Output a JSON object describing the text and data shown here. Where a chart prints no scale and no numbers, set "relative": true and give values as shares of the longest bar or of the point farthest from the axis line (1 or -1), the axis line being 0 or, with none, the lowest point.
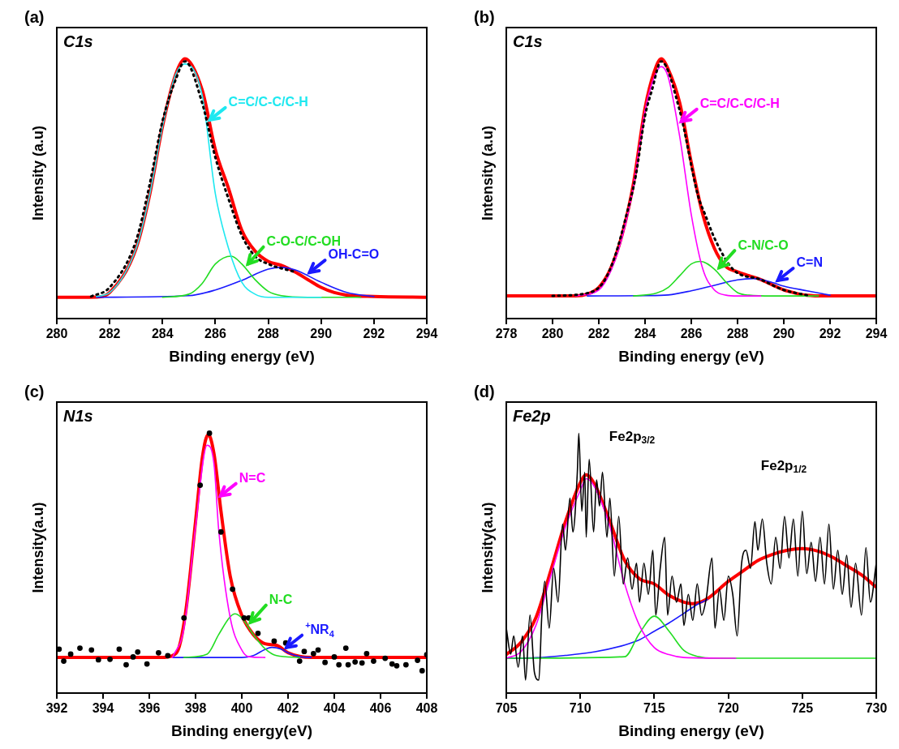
{
  "chart_data": [
    {
      "type": "line",
      "title": "(a)",
      "subtitle": "C1s",
      "xlabel": "Binding energy (eV)",
      "ylabel": "Intensity (a.u)",
      "relative": true,
      "xlim": [
        280,
        294
      ],
      "xticks": [
        280,
        282,
        284,
        286,
        288,
        290,
        292,
        294
      ],
      "marker": "none",
      "series": [
        {
          "type": "line",
          "color": "#000000",
          "line_style": "dotted",
          "x": [
            281.3,
            282,
            283,
            283.5,
            284,
            284.5,
            284.85,
            285.5,
            286,
            286.5,
            287,
            287.5,
            288,
            289
          ],
          "values": [
            0.085,
            0.12,
            0.3,
            0.51,
            0.76,
            0.92,
            0.99,
            0.83,
            0.62,
            0.46,
            0.32,
            0.24,
            0.21,
            0.18
          ]
        },
        {
          "type": "line",
          "name": "C=C/C-C/C-H",
          "color": "#1ee8f0",
          "x": [
            281.5,
            282,
            283,
            283.5,
            284,
            284.5,
            284.85,
            285.5,
            286,
            286.5,
            287,
            287.5,
            288,
            290
          ],
          "values": [
            0.085,
            0.1,
            0.27,
            0.47,
            0.74,
            0.94,
            0.98,
            0.86,
            0.48,
            0.27,
            0.14,
            0.094,
            0.082,
            0.082
          ]
        },
        {
          "type": "line",
          "name": "C-O-C/C-OH",
          "color": "#22dd22",
          "x": [
            284,
            285,
            285.5,
            286,
            286.6,
            287,
            287.5,
            288,
            288.5,
            289.5,
            291.5
          ],
          "values": [
            0.082,
            0.094,
            0.135,
            0.21,
            0.24,
            0.21,
            0.15,
            0.105,
            0.088,
            0.082,
            0.082
          ]
        },
        {
          "type": "line",
          "name": "OH-C=O",
          "color": "#1a1aff",
          "x": [
            281.5,
            285,
            286,
            287,
            288,
            288.5,
            289,
            290,
            291,
            292
          ],
          "values": [
            0.082,
            0.088,
            0.11,
            0.147,
            0.19,
            0.197,
            0.188,
            0.14,
            0.1,
            0.085
          ]
        },
        {
          "type": "line",
          "color": "#ff0000",
          "x": [
            280,
            281.5,
            282,
            283,
            283.5,
            284,
            284.5,
            284.85,
            285.5,
            286,
            286.5,
            287,
            287.5,
            288,
            288.5,
            289,
            289.5,
            290,
            290.5,
            291,
            292,
            294
          ],
          "values": [
            0.082,
            0.083,
            0.1,
            0.27,
            0.47,
            0.74,
            0.94,
            1,
            0.88,
            0.65,
            0.5,
            0.34,
            0.26,
            0.22,
            0.205,
            0.18,
            0.15,
            0.12,
            0.1,
            0.09,
            0.085,
            0.082
          ]
        }
      ]
    },
    {
      "type": "line",
      "title": "(b)",
      "subtitle": "C1s",
      "xlabel": "Binding energy (eV)",
      "ylabel": "Intensity (a.u)",
      "relative": true,
      "xlim": [
        278,
        294
      ],
      "xticks": [
        278,
        280,
        282,
        284,
        286,
        288,
        290,
        292,
        294
      ],
      "marker": "none",
      "series": [
        {
          "type": "line",
          "color": "#000000",
          "line_style": "dotted",
          "x": [
            280,
            281.6,
            282.2,
            282.7,
            283.2,
            283.6,
            284,
            284.3,
            284.7,
            285.5,
            286.3,
            286.6,
            287,
            287.8,
            289,
            290,
            291
          ],
          "values": [
            0.087,
            0.1,
            0.14,
            0.24,
            0.4,
            0.55,
            0.78,
            0.88,
            0.99,
            0.8,
            0.47,
            0.4,
            0.31,
            0.19,
            0.15,
            0.11,
            0.09
          ]
        },
        {
          "type": "line",
          "name": "C=C/C-C/C-H",
          "color": "#ff00ff",
          "x": [
            281,
            282,
            282.5,
            283,
            283.5,
            284,
            284.4,
            284.7,
            285,
            285.5,
            286,
            286.5,
            287,
            287.5,
            288,
            289
          ],
          "values": [
            0.087,
            0.11,
            0.18,
            0.31,
            0.51,
            0.8,
            0.93,
            0.97,
            0.93,
            0.7,
            0.4,
            0.19,
            0.11,
            0.09,
            0.087,
            0.087
          ]
        },
        {
          "type": "line",
          "name": "C-N/C-O",
          "color": "#22dd22",
          "x": [
            283.5,
            284.5,
            285,
            285.5,
            286,
            286.4,
            287,
            287.5,
            288,
            288.5,
            289.5,
            291.5
          ],
          "values": [
            0.087,
            0.098,
            0.12,
            0.165,
            0.21,
            0.22,
            0.19,
            0.14,
            0.1,
            0.09,
            0.087,
            0.087
          ]
        },
        {
          "type": "line",
          "name": "C=N",
          "color": "#1a1aff",
          "x": [
            281.5,
            284,
            285,
            286,
            287,
            288,
            288.7,
            289.5,
            290,
            291,
            292
          ],
          "values": [
            0.087,
            0.088,
            0.091,
            0.107,
            0.128,
            0.149,
            0.154,
            0.139,
            0.125,
            0.107,
            0.09
          ]
        },
        {
          "type": "line",
          "color": "#ff0000",
          "x": [
            278,
            281,
            281.5,
            282,
            282.5,
            283,
            283.5,
            284,
            284.4,
            284.7,
            285,
            285.5,
            286,
            286.5,
            287,
            287.5,
            288,
            288.5,
            289,
            289.5,
            290,
            290.5,
            291,
            292,
            294
          ],
          "values": [
            0.087,
            0.087,
            0.094,
            0.12,
            0.19,
            0.32,
            0.52,
            0.81,
            0.95,
            1,
            0.96,
            0.83,
            0.6,
            0.4,
            0.27,
            0.2,
            0.18,
            0.165,
            0.15,
            0.13,
            0.11,
            0.098,
            0.09,
            0.087,
            0.087
          ]
        }
      ]
    },
    {
      "type": "line",
      "title": "(c)",
      "subtitle": "N1s",
      "xlabel": "Binding energy(eV)",
      "ylabel": "Intensity(a.u)",
      "relative": true,
      "xlim": [
        392,
        408
      ],
      "xticks": [
        392,
        394,
        396,
        398,
        400,
        402,
        404,
        406,
        408
      ],
      "marker": "none",
      "series": [
        {
          "type": "scatter",
          "marker": "circle",
          "color": "#000000",
          "x": [
            392.1,
            392.3,
            392.6,
            393,
            393.5,
            393.8,
            394.3,
            394.7,
            395,
            395.3,
            395.5,
            395.9,
            396.4,
            396.8,
            397.5,
            398.2,
            398.6,
            399.1,
            399.6,
            400.1,
            400.3,
            400.7,
            401.4,
            401.9,
            402.5,
            402.7,
            403.1,
            403.3,
            403.6,
            404,
            404.2,
            404.5,
            404.6,
            404.9,
            405.2,
            405.4,
            405.7,
            406.2,
            406.5,
            406.7,
            407.1,
            407.6,
            407.8,
            408
          ],
          "values": [
            0.169,
            0.123,
            0.15,
            0.173,
            0.166,
            0.128,
            0.13,
            0.169,
            0.109,
            0.139,
            0.158,
            0.112,
            0.155,
            0.144,
            0.289,
            0.8,
            1,
            0.62,
            0.4,
            0.289,
            0.289,
            0.23,
            0.2,
            0.193,
            0.123,
            0.16,
            0.152,
            0.166,
            0.118,
            0.139,
            0.109,
            0.173,
            0.109,
            0.12,
            0.116,
            0.152,
            0.123,
            0.134,
            0.112,
            0.105,
            0.109,
            0.126,
            0.086,
            0.148
          ]
        },
        {
          "type": "line",
          "name": "N=C",
          "color": "#ff00ff",
          "x": [
            397,
            397.5,
            398,
            398.5,
            398.8,
            399,
            399.5,
            400,
            400.3,
            401
          ],
          "values": [
            0.137,
            0.25,
            0.64,
            0.954,
            0.88,
            0.63,
            0.29,
            0.166,
            0.14,
            0.137
          ]
        },
        {
          "type": "line",
          "name": "N-C",
          "color": "#22dd22",
          "x": [
            397.5,
            398.5,
            399,
            399.5,
            399.7,
            400,
            400.5,
            401,
            401.5,
            402.5
          ],
          "values": [
            0.137,
            0.15,
            0.225,
            0.294,
            0.305,
            0.289,
            0.225,
            0.171,
            0.144,
            0.137
          ]
        },
        {
          "type": "line",
          "name": "$^{+}$NR$_{4}$",
          "color": "#1a1aff",
          "x": [
            397,
            400,
            400.5,
            401,
            401.3,
            401.7,
            402,
            402.5,
            403
          ],
          "values": [
            0.137,
            0.137,
            0.144,
            0.168,
            0.176,
            0.169,
            0.155,
            0.14,
            0.137
          ]
        },
        {
          "type": "line",
          "color": "#ff0000",
          "x": [
            392,
            396.5,
            397,
            397.3,
            397.6,
            398,
            398.3,
            398.55,
            398.8,
            399.1,
            399.5,
            400,
            400.5,
            401,
            401.5,
            402,
            402.5,
            403,
            408
          ],
          "values": [
            0.137,
            0.137,
            0.144,
            0.18,
            0.33,
            0.66,
            0.91,
            0.995,
            0.92,
            0.7,
            0.45,
            0.3,
            0.225,
            0.19,
            0.184,
            0.155,
            0.141,
            0.137,
            0.137
          ]
        }
      ]
    },
    {
      "type": "line",
      "title": "(d)",
      "subtitle": "Fe2p",
      "xlabel": "Binding energy (eV)",
      "ylabel": "Intensity(a.u)",
      "relative": true,
      "xlim": [
        705,
        730
      ],
      "xticks": [
        705,
        710,
        715,
        720,
        725,
        730
      ],
      "marker": "none",
      "annotations": [
        "Fe2p$_{3/2}$",
        "Fe2p$_{1/2}$"
      ],
      "series": [
        {
          "type": "line",
          "color": "#000000",
          "x": [
            705,
            705.3,
            705.5,
            705.8,
            706.1,
            706.3,
            706.6,
            706.9,
            707.2,
            707.4,
            707.6,
            707.9,
            708.2,
            708.5,
            708.8,
            709,
            709.3,
            709.5,
            709.8,
            709.9,
            710.1,
            710.3,
            710.4,
            710.6,
            710.9,
            711.1,
            711.3,
            711.5,
            711.8,
            712,
            712.3,
            712.6,
            712.9,
            713.2,
            713.5,
            713.8,
            714,
            714.3,
            714.6,
            714.9,
            715.1,
            715.4,
            715.7,
            715.9,
            716.2,
            716.5,
            716.8,
            717,
            717.3,
            717.6,
            717.9,
            718.2,
            718.5,
            718.9,
            719.1,
            719.4,
            719.7,
            720,
            720.3,
            720.6,
            720.9,
            721.2,
            721.5,
            721.8,
            722,
            722.3,
            722.6,
            722.9,
            723.2,
            723.5,
            723.8,
            724.1,
            724.4,
            724.7,
            725,
            725.3,
            725.6,
            725.9,
            726.2,
            726.5,
            726.8,
            727.1,
            727.4,
            727.7,
            728,
            728.3,
            728.6,
            729,
            729.3,
            729.6,
            730
          ],
          "values": [
            0.25,
            0.15,
            0.22,
            0.1,
            0.22,
            0.05,
            0.3,
            0.08,
            0.05,
            0.3,
            0.43,
            0.25,
            0.48,
            0.35,
            0.65,
            0.55,
            0.75,
            0.62,
            0.85,
            1,
            0.7,
            0.85,
            0.6,
            0.9,
            0.62,
            0.82,
            0.72,
            0.85,
            0.6,
            0.75,
            0.45,
            0.68,
            0.42,
            0.52,
            0.4,
            0.5,
            0.35,
            0.5,
            0.38,
            0.55,
            0.3,
            0.48,
            0.6,
            0.3,
            0.45,
            0.35,
            0.42,
            0.26,
            0.38,
            0.28,
            0.42,
            0.3,
            0.36,
            0.52,
            0.25,
            0.4,
            0.28,
            0.45,
            0.38,
            0.22,
            0.5,
            0.55,
            0.48,
            0.66,
            0.55,
            0.67,
            0.5,
            0.42,
            0.6,
            0.48,
            0.68,
            0.52,
            0.67,
            0.45,
            0.7,
            0.46,
            0.58,
            0.43,
            0.6,
            0.42,
            0.65,
            0.4,
            0.55,
            0.38,
            0.53,
            0.33,
            0.5,
            0.3,
            0.56,
            0.35,
            0.5
          ]
        },
        {
          "type": "line",
          "color": "#ff00ff",
          "x": [
            705,
            706,
            707,
            708,
            709,
            710,
            710.4,
            711,
            712,
            713,
            714,
            715,
            716,
            717,
            720.5
          ],
          "values": [
            0.134,
            0.16,
            0.26,
            0.45,
            0.64,
            0.78,
            0.825,
            0.79,
            0.64,
            0.42,
            0.26,
            0.175,
            0.148,
            0.137,
            0.134
          ]
        },
        {
          "type": "line",
          "color": "#22dd22",
          "x": [
            705,
            713,
            714,
            715,
            716,
            717,
            718,
            719,
            730
          ],
          "values": [
            0.134,
            0.14,
            0.23,
            0.296,
            0.238,
            0.164,
            0.14,
            0.134,
            0.134
          ]
        },
        {
          "type": "line",
          "color": "#1a1aff",
          "x": [
            705,
            707,
            709,
            711,
            713,
            714,
            715,
            716,
            717,
            718,
            718.6
          ],
          "values": [
            0.134,
            0.136,
            0.145,
            0.159,
            0.185,
            0.205,
            0.238,
            0.27,
            0.307,
            0.344,
            0.36
          ]
        },
        {
          "type": "line",
          "color": "#ff0000",
          "x": [
            705,
            706,
            707,
            708,
            709,
            710,
            710.4,
            711,
            712,
            713,
            714,
            715,
            716,
            717,
            717.6,
            718.5,
            720,
            721,
            722,
            723,
            724,
            725,
            726,
            727,
            728,
            729,
            730
          ],
          "values": [
            0.148,
            0.196,
            0.29,
            0.47,
            0.66,
            0.81,
            0.84,
            0.8,
            0.66,
            0.51,
            0.44,
            0.42,
            0.376,
            0.35,
            0.344,
            0.36,
            0.43,
            0.47,
            0.51,
            0.534,
            0.55,
            0.556,
            0.547,
            0.524,
            0.49,
            0.455,
            0.407
          ]
        }
      ]
    }
  ]
}
